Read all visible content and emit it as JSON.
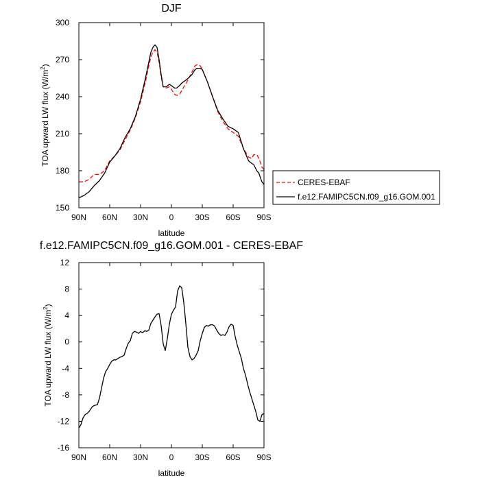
{
  "chart_data": [
    {
      "type": "line",
      "title": "DJF",
      "xlabel": "latitude",
      "ylabel": "TOA upward LW flux (W/m²)",
      "ylabel_main": "TOA upward LW flux (W/m",
      "ylabel_sup": "2",
      "ylabel_close": ")",
      "xlim": [
        90,
        -90
      ],
      "ylim": [
        150,
        300
      ],
      "x_ticks": [
        90,
        60,
        30,
        0,
        -30,
        -60,
        -90
      ],
      "x_tick_labels": [
        "90N",
        "60N",
        "30N",
        "0",
        "30S",
        "60S",
        "90S"
      ],
      "y_ticks": [
        150,
        180,
        210,
        240,
        270,
        300
      ],
      "y_tick_labels": [
        "150",
        "180",
        "210",
        "240",
        "270",
        "300"
      ],
      "legend_position": "outside-right",
      "series": [
        {
          "name": "CERES-EBAF",
          "color": "#ff0000",
          "dash": "dashed",
          "x": [
            90,
            85,
            80,
            75,
            70,
            65,
            60,
            55,
            50,
            45,
            40,
            35,
            30,
            25,
            22,
            20,
            18,
            16,
            14,
            12,
            10,
            8,
            5,
            2,
            0,
            -3,
            -5,
            -8,
            -10,
            -15,
            -20,
            -23,
            -25,
            -28,
            -30,
            -35,
            -40,
            -45,
            -50,
            -55,
            -60,
            -65,
            -70,
            -75,
            -78,
            -80,
            -83,
            -85,
            -88,
            -90
          ],
          "y": [
            171,
            171,
            173,
            177,
            177,
            180,
            188,
            192,
            197,
            205,
            213,
            223,
            236,
            253,
            265,
            272,
            276,
            278,
            276,
            268,
            256,
            248,
            247,
            248,
            246,
            242,
            241,
            242,
            245,
            252,
            260,
            265,
            266,
            265,
            262,
            252,
            240,
            228,
            220,
            214,
            211,
            208,
            198,
            191,
            190,
            193,
            193,
            190,
            183,
            181
          ]
        },
        {
          "name": "f.e12.FAMIPC5CN.f09_g16.GOM.001",
          "color": "#000000",
          "dash": "solid",
          "x": [
            90,
            85,
            80,
            75,
            70,
            65,
            60,
            55,
            50,
            45,
            40,
            35,
            30,
            25,
            22,
            20,
            18,
            16,
            14,
            12,
            10,
            8,
            5,
            2,
            0,
            -3,
            -5,
            -8,
            -10,
            -15,
            -20,
            -23,
            -25,
            -28,
            -30,
            -35,
            -40,
            -45,
            -50,
            -55,
            -60,
            -65,
            -70,
            -75,
            -78,
            -80,
            -83,
            -85,
            -88,
            -90
          ],
          "y": [
            158,
            160,
            163,
            168,
            172,
            178,
            187,
            192,
            198,
            207,
            214,
            224,
            238,
            256,
            268,
            276,
            280,
            282,
            280,
            270,
            258,
            248,
            248,
            250,
            249,
            247,
            247,
            249,
            251,
            254,
            258,
            262,
            263,
            263,
            262,
            252,
            240,
            229,
            222,
            216,
            214,
            211,
            198,
            188,
            186,
            185,
            180,
            178,
            171,
            169
          ]
        }
      ]
    },
    {
      "type": "line",
      "title": "f.e12.FAMIPC5CN.f09_g16.GOM.001 - CERES-EBAF",
      "xlabel": "latitude",
      "ylabel": "TOA upward LW flux (W/m²)",
      "ylabel_main": "TOA upward LW flux (W/m",
      "ylabel_sup": "2",
      "ylabel_close": ")",
      "xlim": [
        90,
        -90
      ],
      "ylim": [
        -16,
        12
      ],
      "x_ticks": [
        90,
        60,
        30,
        0,
        -30,
        -60,
        -90
      ],
      "x_tick_labels": [
        "90N",
        "60N",
        "30N",
        "0",
        "30S",
        "60S",
        "90S"
      ],
      "y_ticks": [
        -16,
        -12,
        -8,
        -4,
        0,
        4,
        8,
        12
      ],
      "y_tick_labels": [
        "-16",
        "-12",
        "-8",
        "-4",
        "0",
        "4",
        "8",
        "12"
      ],
      "series": [
        {
          "color": "#000000",
          "dash": "solid",
          "x": [
            90,
            88,
            86,
            84,
            82,
            80,
            77,
            75,
            72,
            70,
            68,
            66,
            64,
            62,
            60,
            58,
            56,
            54,
            52,
            50,
            48,
            46,
            44,
            42,
            40,
            38,
            36,
            34,
            32,
            30,
            28,
            26,
            24,
            22,
            20,
            18,
            16,
            14,
            12,
            10,
            8,
            6,
            4,
            2,
            0,
            -2,
            -4,
            -6,
            -8,
            -10,
            -12,
            -14,
            -16,
            -18,
            -20,
            -22,
            -24,
            -26,
            -28,
            -30,
            -32,
            -34,
            -36,
            -38,
            -40,
            -42,
            -44,
            -46,
            -48,
            -50,
            -52,
            -54,
            -56,
            -58,
            -60,
            -62,
            -64,
            -66,
            -68,
            -70,
            -72,
            -74,
            -76,
            -78,
            -80,
            -82,
            -84,
            -86,
            -88,
            -90
          ],
          "y": [
            -13,
            -12.5,
            -11.5,
            -11,
            -10.8,
            -10.5,
            -9.8,
            -9.6,
            -9.5,
            -8.5,
            -7,
            -5.5,
            -4.5,
            -4,
            -3.4,
            -2.9,
            -2.7,
            -2.7,
            -2.5,
            -2.3,
            -2.2,
            -2,
            -1,
            -0.2,
            0.2,
            1.3,
            1.6,
            1.5,
            1.3,
            1.6,
            1.4,
            1.7,
            1.6,
            1.8,
            2.8,
            3.3,
            3.8,
            4.2,
            4.3,
            2.5,
            -0.3,
            -1.3,
            0.5,
            2.7,
            4.2,
            4.8,
            5.3,
            7.7,
            8.5,
            8.2,
            6,
            2.8,
            -0.8,
            -2.2,
            -2.7,
            -2.5,
            -2,
            -1.3,
            0.2,
            1.3,
            2.2,
            2.5,
            2.4,
            2.6,
            2.6,
            2.4,
            1.8,
            1.3,
            1,
            1.1,
            1,
            1.5,
            2.3,
            2.7,
            2.5,
            0.8,
            -0.5,
            -1.5,
            -2.5,
            -4,
            -5,
            -6.3,
            -7.5,
            -8.5,
            -9.5,
            -10.5,
            -11.8,
            -12,
            -11,
            -10.8
          ]
        }
      ]
    }
  ]
}
